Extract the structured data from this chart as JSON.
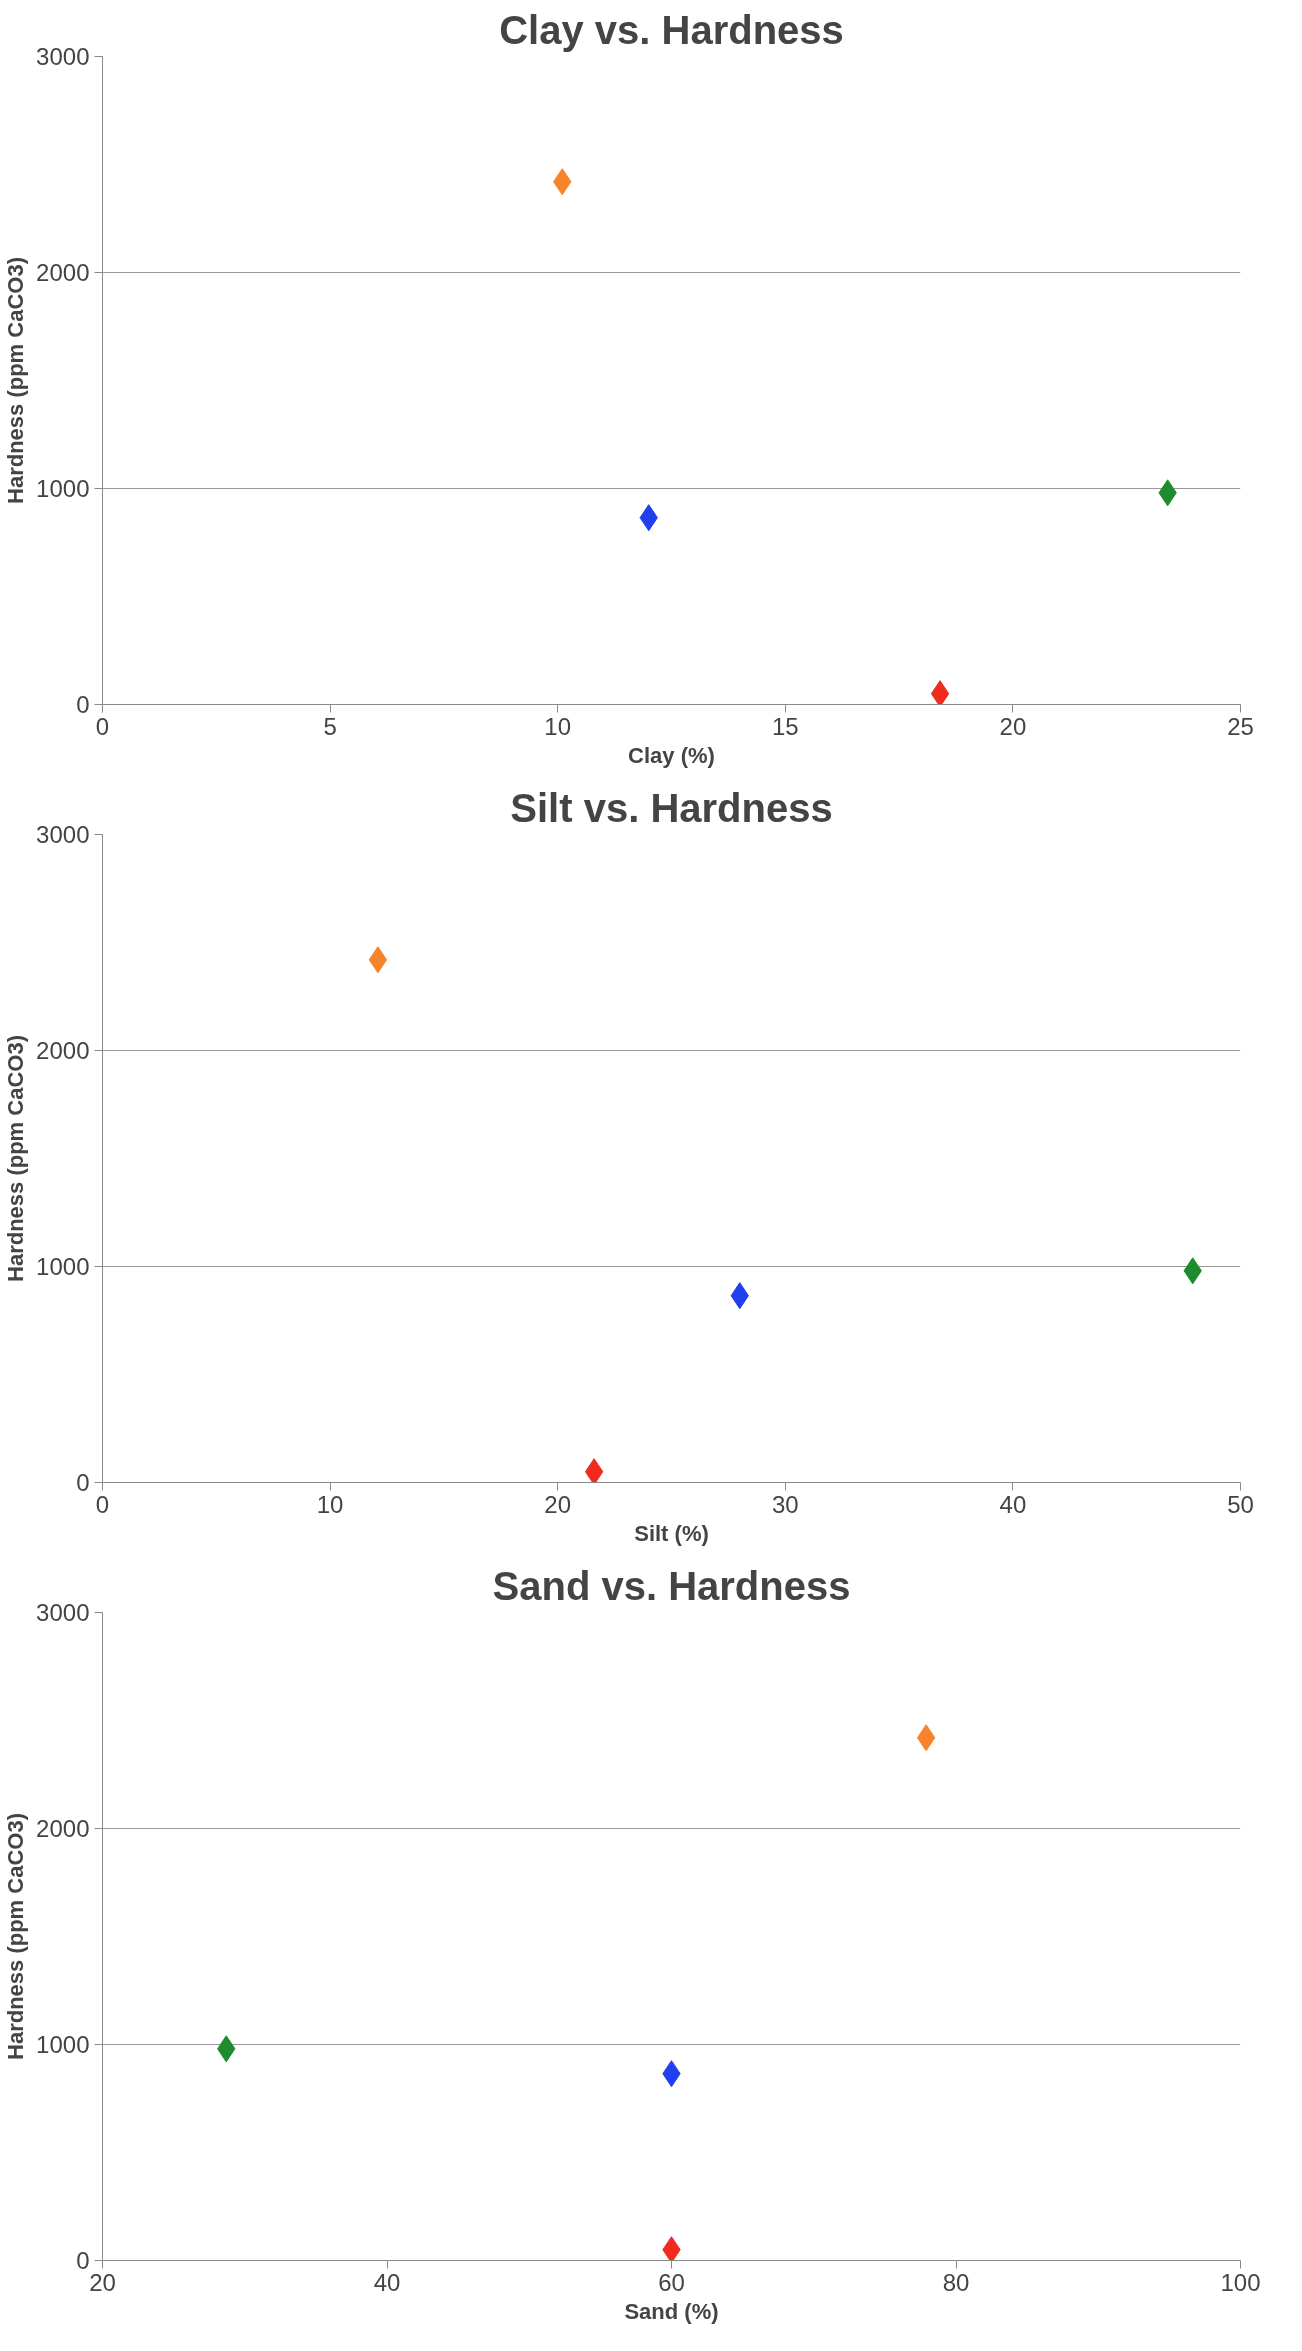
{
  "chart_data": [
    {
      "type": "scatter",
      "title": "Clay vs. Hardness",
      "xlabel": "Clay (%)",
      "ylabel": "Hardness (ppm CaCO3)",
      "x": [
        10.1,
        12.0,
        18.4,
        23.4
      ],
      "values": [
        2420,
        865,
        50,
        980
      ],
      "colors": [
        "#f7832a",
        "#2040f0",
        "#f02a1e",
        "#1e8c2e"
      ],
      "xlim": [
        0,
        25
      ],
      "xticks": [
        0,
        5,
        10,
        15,
        20,
        25
      ],
      "ylim": [
        0,
        3000
      ],
      "yticks": [
        0,
        1000,
        2000,
        3000
      ],
      "grid": "y",
      "marker": "diamond"
    },
    {
      "type": "scatter",
      "title": "Silt vs. Hardness",
      "xlabel": "Silt (%)",
      "ylabel": "Hardness (ppm CaCO3)",
      "x": [
        12.1,
        28.0,
        21.6,
        47.9
      ],
      "values": [
        2420,
        865,
        50,
        980
      ],
      "colors": [
        "#f7832a",
        "#2040f0",
        "#f02a1e",
        "#1e8c2e"
      ],
      "xlim": [
        0,
        50
      ],
      "xticks": [
        0,
        10,
        20,
        30,
        40,
        50
      ],
      "ylim": [
        0,
        3000
      ],
      "yticks": [
        0,
        1000,
        2000,
        3000
      ],
      "grid": "y",
      "marker": "diamond"
    },
    {
      "type": "scatter",
      "title": "Sand vs. Hardness",
      "xlabel": "Sand (%)",
      "ylabel": "Hardness (ppm CaCO3)",
      "x": [
        77.9,
        60.0,
        60.0,
        28.7
      ],
      "values": [
        2420,
        865,
        50,
        980
      ],
      "colors": [
        "#f7832a",
        "#2040f0",
        "#f02a1e",
        "#1e8c2e"
      ],
      "xlim": [
        20,
        100
      ],
      "xticks": [
        20,
        40,
        60,
        80,
        100
      ],
      "ylim": [
        0,
        3000
      ],
      "yticks": [
        0,
        1000,
        2000,
        3000
      ],
      "grid": "y",
      "marker": "diamond"
    }
  ]
}
